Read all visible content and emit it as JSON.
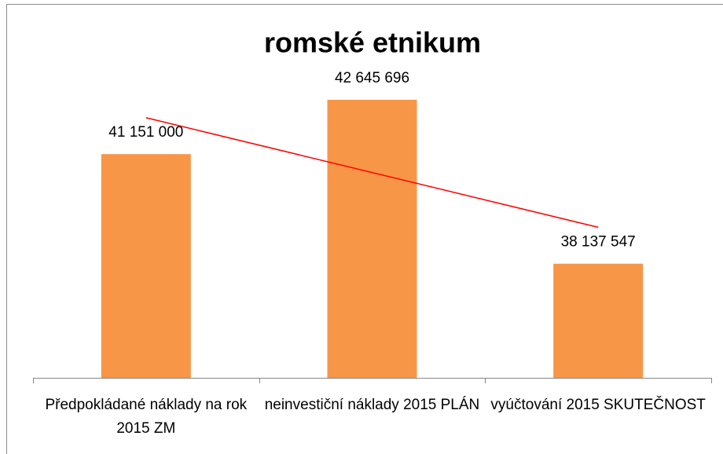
{
  "chart_data": {
    "type": "bar",
    "title": "romské etnikum",
    "categories": [
      "Předpokládané náklady na rok 2015 ZM",
      "neinvestiční náklady 2015 PLÁN",
      "vyúčtování 2015 SKUTEČNOST"
    ],
    "values": [
      41151000,
      42645696,
      38137547
    ],
    "value_labels": [
      "41 151 000",
      "42 645 696",
      "38 137 547"
    ],
    "color": "#f79646",
    "trendline": {
      "type": "linear",
      "color": "#ff0000"
    },
    "ylim": [
      35000000,
      45000000
    ]
  }
}
